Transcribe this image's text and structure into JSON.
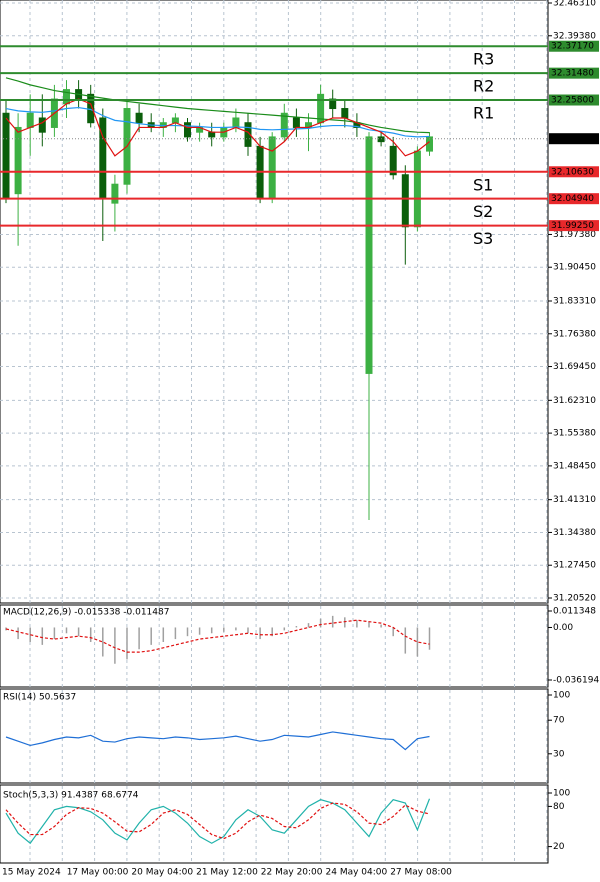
{
  "chart_data": [
    {
      "type": "candlestick",
      "ylim": [
        31.2052,
        32.4631
      ],
      "yticks": [
        {
          "value": 32.4631,
          "label": "32.46310"
        },
        {
          "value": 32.3938,
          "label": "32.39380"
        },
        {
          "value": 31.9738,
          "label": "31.97380"
        },
        {
          "value": 31.9045,
          "label": "31.90450"
        },
        {
          "value": 31.8331,
          "label": "31.83310"
        },
        {
          "value": 31.7638,
          "label": "31.76380"
        },
        {
          "value": 31.6945,
          "label": "31.69450"
        },
        {
          "value": 31.6231,
          "label": "31.62310"
        },
        {
          "value": 31.5538,
          "label": "31.55380"
        },
        {
          "value": 31.4845,
          "label": "31.48450"
        },
        {
          "value": 31.4131,
          "label": "31.41310"
        },
        {
          "value": 31.3438,
          "label": "31.34380"
        },
        {
          "value": 31.2745,
          "label": "31.27450"
        },
        {
          "value": 31.2052,
          "label": "31.20520"
        }
      ],
      "categories": [
        "15 May 2024",
        "17 May 00:00",
        "20 May 04:00",
        "21 May 12:00",
        "22 May 20:00",
        "24 May 04:00",
        "27 May 08:00"
      ],
      "grid": true,
      "up_color": "#3cb043",
      "down_color": "#0b5e0b",
      "ohlc": [
        [
          32.23,
          32.26,
          32.04,
          32.05
        ],
        [
          32.06,
          32.23,
          31.95,
          32.2
        ],
        [
          32.2,
          32.27,
          32.14,
          32.23
        ],
        [
          32.22,
          32.27,
          32.16,
          32.19
        ],
        [
          32.2,
          32.29,
          32.18,
          32.26
        ],
        [
          32.25,
          32.3,
          32.22,
          32.28
        ],
        [
          32.28,
          32.3,
          32.24,
          32.26
        ],
        [
          32.27,
          32.29,
          32.2,
          32.21
        ],
        [
          32.22,
          32.24,
          31.96,
          32.05
        ],
        [
          32.04,
          32.1,
          31.98,
          32.08
        ],
        [
          32.08,
          32.26,
          32.06,
          32.24
        ],
        [
          32.23,
          32.25,
          32.19,
          32.21
        ],
        [
          32.21,
          32.23,
          32.19,
          32.2
        ],
        [
          32.2,
          32.22,
          32.18,
          32.21
        ],
        [
          32.21,
          32.23,
          32.19,
          32.22
        ],
        [
          32.21,
          32.22,
          32.17,
          32.18
        ],
        [
          32.19,
          32.21,
          32.17,
          32.2
        ],
        [
          32.19,
          32.21,
          32.16,
          32.18
        ],
        [
          32.18,
          32.21,
          32.17,
          32.2
        ],
        [
          32.2,
          32.24,
          32.19,
          32.22
        ],
        [
          32.21,
          32.23,
          32.14,
          32.16
        ],
        [
          32.16,
          32.18,
          32.04,
          32.05
        ],
        [
          32.05,
          32.19,
          32.04,
          32.18
        ],
        [
          32.18,
          32.25,
          32.17,
          32.23
        ],
        [
          32.22,
          32.24,
          32.18,
          32.2
        ],
        [
          32.2,
          32.23,
          32.15,
          32.21
        ],
        [
          32.21,
          32.29,
          32.2,
          32.27
        ],
        [
          32.26,
          32.28,
          32.22,
          32.24
        ],
        [
          32.24,
          32.26,
          32.2,
          32.22
        ],
        [
          32.21,
          32.23,
          32.18,
          32.2
        ],
        [
          31.68,
          32.19,
          31.37,
          32.18
        ],
        [
          32.18,
          32.19,
          32.16,
          32.17
        ],
        [
          32.16,
          32.18,
          32.09,
          32.1
        ],
        [
          32.1,
          32.12,
          31.91,
          31.99
        ],
        [
          31.99,
          32.16,
          31.98,
          32.15
        ],
        [
          32.15,
          32.19,
          32.14,
          32.18
        ]
      ],
      "moving_averages": [
        {
          "color": "#1a8c1a",
          "values": [
            32.305,
            32.298,
            32.29,
            32.284,
            32.278,
            32.274,
            32.27,
            32.266,
            32.262,
            32.258,
            32.255,
            32.252,
            32.249,
            32.246,
            32.243,
            32.24,
            32.238,
            32.236,
            32.234,
            32.232,
            32.23,
            32.228,
            32.226,
            32.224,
            32.222,
            32.22,
            32.218,
            32.216,
            32.214,
            32.211,
            32.205,
            32.2,
            32.196,
            32.192,
            32.19,
            32.189
          ]
        },
        {
          "color": "#2196f3",
          "values": [
            32.24,
            32.235,
            32.233,
            32.232,
            32.235,
            32.24,
            32.242,
            32.238,
            32.225,
            32.215,
            32.212,
            32.208,
            32.205,
            32.204,
            32.204,
            32.203,
            32.202,
            32.2,
            32.2,
            32.201,
            32.2,
            32.196,
            32.195,
            32.196,
            32.197,
            32.198,
            32.202,
            32.204,
            32.204,
            32.202,
            32.195,
            32.192,
            32.188,
            32.182,
            32.18,
            32.181
          ]
        },
        {
          "color": "#e01010",
          "values": [
            32.22,
            32.19,
            32.2,
            32.21,
            32.23,
            32.25,
            32.26,
            32.25,
            32.18,
            32.14,
            32.16,
            32.2,
            32.2,
            32.2,
            32.21,
            32.2,
            32.2,
            32.19,
            32.19,
            32.2,
            32.19,
            32.16,
            32.15,
            32.17,
            32.2,
            32.2,
            32.21,
            32.22,
            32.22,
            32.21,
            32.2,
            32.19,
            32.17,
            32.14,
            32.15,
            32.17
          ]
        }
      ],
      "levels": [
        {
          "name": "R3",
          "value": 32.3717,
          "value_label": "32.37170",
          "color": "#2e8b2e"
        },
        {
          "name": "R2",
          "value": 32.3148,
          "value_label": "32.31480",
          "color": "#2e8b2e"
        },
        {
          "name": "R1",
          "value": 32.258,
          "value_label": "32.25800",
          "color": "#2e8b2e"
        },
        {
          "name": "S1",
          "value": 32.1063,
          "value_label": "32.10630",
          "color": "#e8282b"
        },
        {
          "name": "S2",
          "value": 32.0494,
          "value_label": "32.04940",
          "color": "#e8282b"
        },
        {
          "name": "S3",
          "value": 31.9925,
          "value_label": "31.99250",
          "color": "#e8282b"
        }
      ],
      "last_price": 32.17621
    },
    {
      "type": "macd",
      "title": "MACD(12,26,9) -0.015338 -0.011487",
      "ylim": [
        -0.036194,
        0.011348
      ],
      "yticks": [
        0.011348,
        {
          "value": 0,
          "label": "0.00"
        },
        -0.036194
      ],
      "histogram_color": "#a0a0a0",
      "signal_color": "#e01010",
      "histogram": [
        -0.002,
        -0.008,
        -0.01,
        -0.012,
        -0.008,
        -0.004,
        -0.006,
        -0.01,
        -0.02,
        -0.025,
        -0.022,
        -0.015,
        -0.012,
        -0.01,
        -0.008,
        -0.006,
        -0.005,
        -0.004,
        -0.003,
        -0.002,
        -0.004,
        -0.008,
        -0.006,
        -0.002,
        0.001,
        0.003,
        0.006,
        0.008,
        0.007,
        0.005,
        0.004,
        0.002,
        -0.006,
        -0.018,
        -0.02,
        -0.015338
      ],
      "signal": [
        -0.001,
        -0.003,
        -0.005,
        -0.007,
        -0.008,
        -0.007,
        -0.006,
        -0.007,
        -0.01,
        -0.014,
        -0.017,
        -0.017,
        -0.016,
        -0.014,
        -0.012,
        -0.01,
        -0.008,
        -0.007,
        -0.006,
        -0.005,
        -0.004,
        -0.005,
        -0.005,
        -0.004,
        -0.002,
        0,
        0.002,
        0.003,
        0.004,
        0.005,
        0.004,
        0.003,
        0,
        -0.006,
        -0.01,
        -0.011487
      ]
    },
    {
      "type": "rsi",
      "title": "RSI(14) 50.5637",
      "ylim": [
        0,
        100
      ],
      "yticks": [
        100,
        70,
        30
      ],
      "color": "#1f6fd6",
      "values": [
        50,
        45,
        40,
        43,
        47,
        50,
        49,
        52,
        45,
        44,
        48,
        50,
        49,
        48,
        50,
        49,
        47,
        48,
        49,
        51,
        48,
        45,
        47,
        52,
        51,
        50,
        53,
        56,
        54,
        52,
        50,
        48,
        47,
        35,
        48,
        50.5637
      ]
    },
    {
      "type": "stochastic",
      "title": "Stoch(5,3,3) 91.4387 68.6774",
      "ylim": [
        0,
        100
      ],
      "yticks": [
        100,
        80,
        20
      ],
      "k_color": "#20b2aa",
      "d_color": "#e01010",
      "k": [
        70,
        40,
        25,
        50,
        75,
        80,
        78,
        72,
        60,
        40,
        30,
        55,
        75,
        80,
        70,
        55,
        35,
        25,
        35,
        60,
        75,
        65,
        45,
        40,
        60,
        80,
        90,
        85,
        75,
        55,
        35,
        70,
        90,
        85,
        45,
        91.4387
      ],
      "d": [
        75,
        55,
        38,
        38,
        50,
        68,
        78,
        77,
        70,
        57,
        43,
        42,
        53,
        70,
        75,
        68,
        53,
        38,
        32,
        40,
        57,
        67,
        62,
        50,
        48,
        60,
        77,
        85,
        83,
        72,
        55,
        53,
        65,
        82,
        73,
        68.6774
      ]
    }
  ]
}
